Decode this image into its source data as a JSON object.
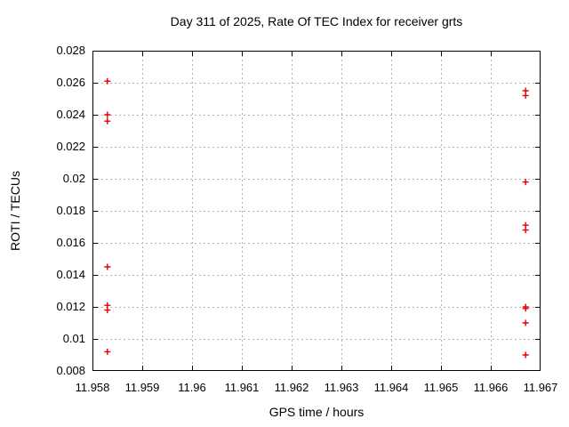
{
  "chart_data": {
    "type": "scatter",
    "title": "Day 311 of 2025, Rate Of TEC Index for receiver grts",
    "xlabel": "GPS time / hours",
    "ylabel": "ROTI / TECUs",
    "xlim": [
      11.958,
      11.967
    ],
    "ylim": [
      0.008,
      0.028
    ],
    "xticks": {
      "values": [
        11.958,
        11.959,
        11.96,
        11.961,
        11.962,
        11.963,
        11.964,
        11.965,
        11.966,
        11.967
      ],
      "labels": [
        "11.958",
        "11.959",
        "11.96",
        "11.961",
        "11.962",
        "11.963",
        "11.964",
        "11.965",
        "11.966",
        "11.967"
      ]
    },
    "yticks": {
      "values": [
        0.008,
        0.01,
        0.012,
        0.014,
        0.016,
        0.018,
        0.02,
        0.022,
        0.024,
        0.026,
        0.028
      ],
      "labels": [
        "0.008",
        "0.01",
        "0.012",
        "0.014",
        "0.016",
        "0.018",
        "0.02",
        "0.022",
        "0.024",
        "0.026",
        "0.028"
      ]
    },
    "grid": true,
    "legend": "none",
    "background_color": "#ffffff",
    "border_color": "#000000",
    "grid_color": "#b3b3b3",
    "marker": {
      "shape": "plus",
      "color": "#e00000",
      "size": 7
    },
    "series": [
      {
        "name": "ROTI",
        "points": [
          {
            "x": 11.9583,
            "y": 0.0261
          },
          {
            "x": 11.9583,
            "y": 0.024
          },
          {
            "x": 11.9583,
            "y": 0.0236
          },
          {
            "x": 11.9583,
            "y": 0.0145
          },
          {
            "x": 11.9583,
            "y": 0.0121
          },
          {
            "x": 11.9583,
            "y": 0.0118
          },
          {
            "x": 11.9583,
            "y": 0.0092
          },
          {
            "x": 11.9667,
            "y": 0.0255
          },
          {
            "x": 11.9667,
            "y": 0.0252
          },
          {
            "x": 11.9667,
            "y": 0.0198
          },
          {
            "x": 11.9667,
            "y": 0.0171
          },
          {
            "x": 11.9667,
            "y": 0.0168
          },
          {
            "x": 11.9667,
            "y": 0.012
          },
          {
            "x": 11.9667,
            "y": 0.0119
          },
          {
            "x": 11.9667,
            "y": 0.011
          },
          {
            "x": 11.9667,
            "y": 0.009
          }
        ]
      }
    ]
  }
}
